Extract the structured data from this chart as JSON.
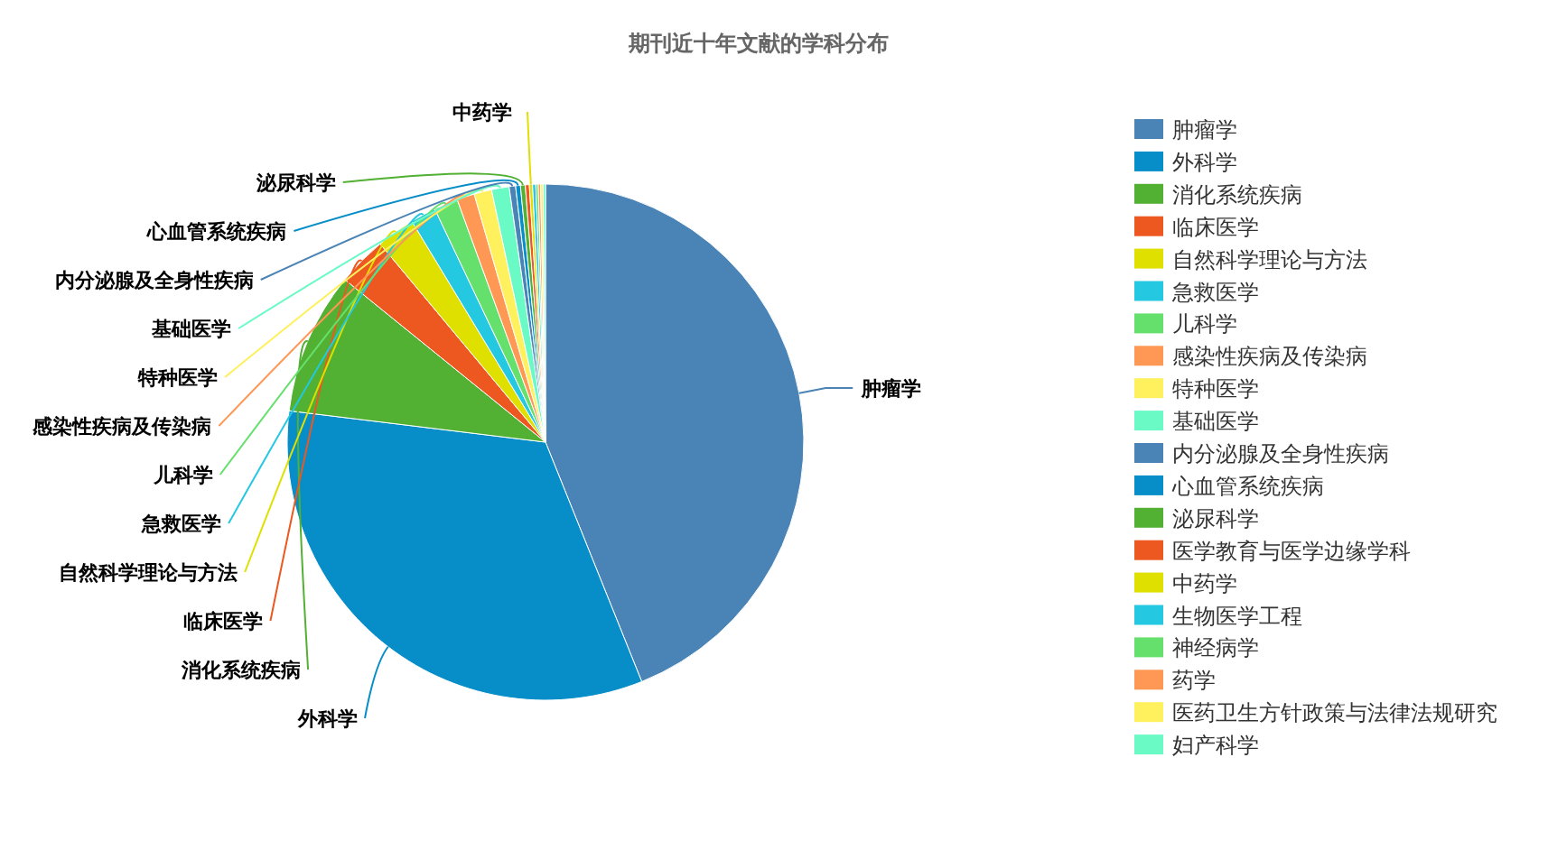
{
  "chart_data": {
    "type": "pie",
    "title": "期刊近十年文献的学科分布",
    "legend": "right",
    "categories": [
      "肿瘤学",
      "外科学",
      "消化系统疾病",
      "临床医学",
      "自然科学理论与方法",
      "急救医学",
      "儿科学",
      "感染性疾病及传染病",
      "特种医学",
      "基础医学",
      "内分泌腺及全身性疾病",
      "心血管系统疾病",
      "泌尿科学",
      "医学教育与医学边缘学科",
      "中药学",
      "生物医学工程",
      "神经病学",
      "药学",
      "医药卫生方针政策与法律法规研究",
      "妇产科学"
    ],
    "values": [
      43.9,
      33,
      8.9,
      3.1,
      2.4,
      1.6,
      1.5,
      1.1,
      1.1,
      1.1,
      0.4,
      0.3,
      0.3,
      0.25,
      0.2,
      0.2,
      0.15,
      0.15,
      0.15,
      0.15
    ],
    "colors": [
      "#4a83b5",
      "#078ec8",
      "#52b033",
      "#ed5720",
      "#dfe000",
      "#24c8e0",
      "#65e06d",
      "#ff9755",
      "#fff05e",
      "#6afac6",
      "#4a83b5",
      "#078ec8",
      "#52b033",
      "#ed5720",
      "#dfe000",
      "#24c8e0",
      "#65e06d",
      "#ff9755",
      "#fff05e",
      "#6afac6"
    ],
    "value_labels": [
      "肿瘤学",
      "外科学",
      "消化系统疾病",
      "临床医学",
      "自然科学理论与方法",
      "急救医学",
      "儿科学",
      "感染性疾病及传染病",
      "特种医学",
      "基础医学",
      "内分泌腺及全身性疾病",
      "心血管系统疾病",
      "泌尿科学",
      null,
      "中药学",
      null,
      null,
      null,
      null,
      null
    ]
  }
}
